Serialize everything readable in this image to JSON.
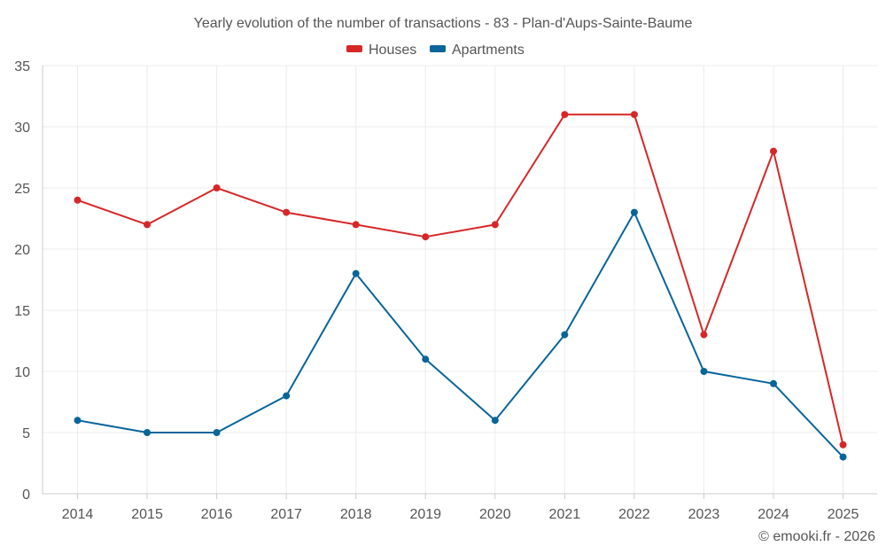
{
  "chart_data": {
    "type": "line",
    "title": "Yearly evolution of the number of transactions - 83 - Plan-d'Aups-Sainte-Baume",
    "categories": [
      "2014",
      "2015",
      "2016",
      "2017",
      "2018",
      "2019",
      "2020",
      "2021",
      "2022",
      "2023",
      "2024",
      "2025"
    ],
    "series": [
      {
        "name": "Houses",
        "color": "#d62728",
        "values": [
          24,
          22,
          25,
          23,
          22,
          21,
          22,
          31,
          31,
          13,
          28,
          4
        ]
      },
      {
        "name": "Apartments",
        "color": "#07659a",
        "values": [
          6,
          5,
          5,
          8,
          18,
          11,
          6,
          13,
          23,
          10,
          9,
          3
        ]
      }
    ],
    "ylim": [
      0,
      35
    ],
    "yticks": [
      0,
      5,
      10,
      15,
      20,
      25,
      30,
      35
    ],
    "xlabel": "",
    "ylabel": "",
    "grid": true,
    "legend": "top-center"
  },
  "credit": "© emooki.fr - 2026"
}
